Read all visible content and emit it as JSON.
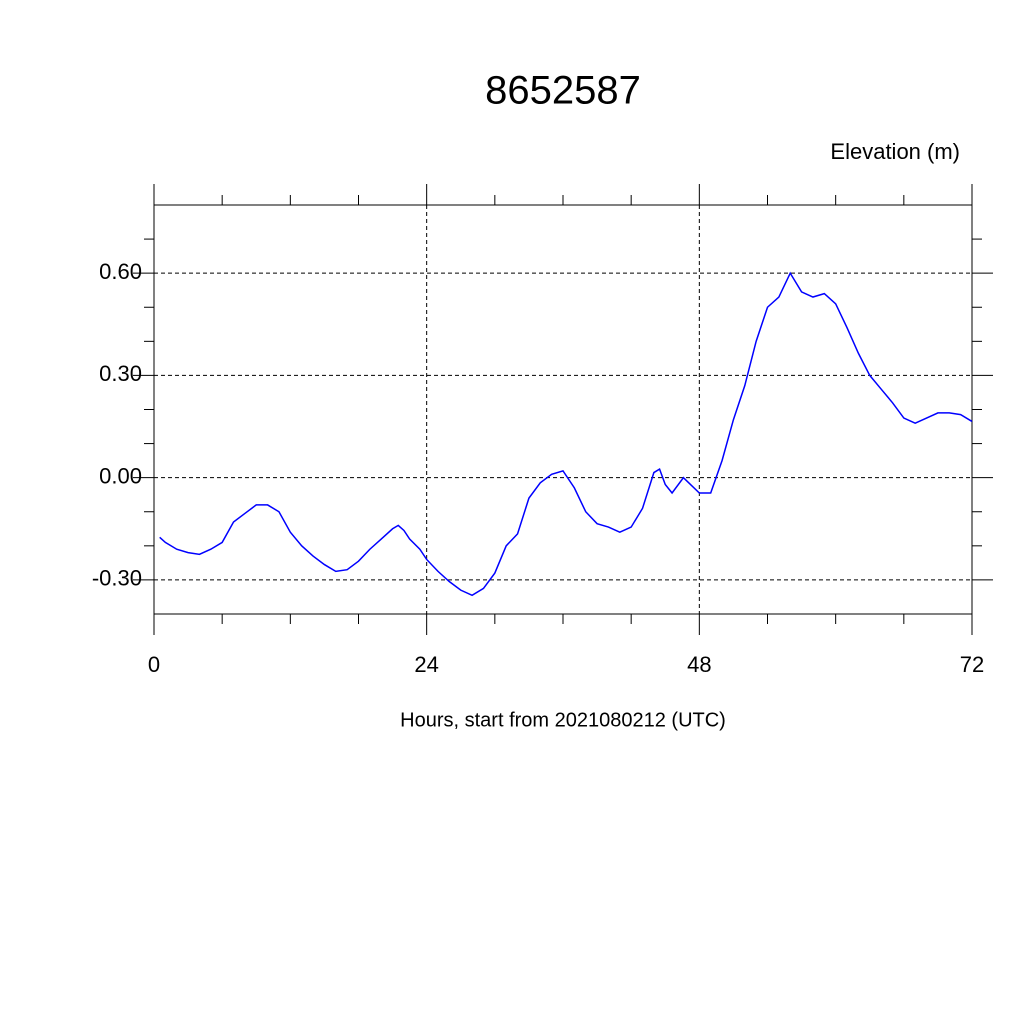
{
  "chart_data": {
    "type": "line",
    "title": "8652587",
    "subtitle": "Elevation (m)",
    "x_label": "Hours, start from 2021080212 (UTC)",
    "x": [
      0.5,
      1,
      2,
      3,
      4,
      5,
      6,
      7,
      8,
      9,
      10,
      11,
      12,
      13,
      14,
      15,
      16,
      17,
      18,
      19,
      20,
      21,
      21.5,
      22,
      22.5,
      23.4,
      24,
      25,
      26,
      27,
      28,
      29,
      30,
      31,
      32,
      33,
      34,
      35,
      36,
      37,
      38,
      39,
      40,
      41,
      42,
      43,
      44,
      44.5,
      45,
      45.6,
      46.6,
      48,
      49,
      50,
      51,
      52,
      53,
      54,
      55,
      56,
      57,
      58,
      59,
      60,
      61,
      62,
      63,
      64,
      65,
      66,
      67,
      68,
      69,
      70,
      71,
      72
    ],
    "series": [
      {
        "name": "Elevation",
        "color": "#0000ff",
        "values": [
          -0.175,
          -0.19,
          -0.21,
          -0.22,
          -0.225,
          -0.21,
          -0.19,
          -0.13,
          -0.105,
          -0.08,
          -0.08,
          -0.1,
          -0.16,
          -0.2,
          -0.23,
          -0.255,
          -0.275,
          -0.27,
          -0.245,
          -0.21,
          -0.18,
          -0.15,
          -0.14,
          -0.155,
          -0.18,
          -0.21,
          -0.24,
          -0.275,
          -0.305,
          -0.33,
          -0.345,
          -0.325,
          -0.28,
          -0.2,
          -0.165,
          -0.06,
          -0.015,
          0.01,
          0.02,
          -0.03,
          -0.1,
          -0.135,
          -0.145,
          -0.16,
          -0.145,
          -0.09,
          0.015,
          0.025,
          -0.02,
          -0.045,
          0.0,
          -0.045,
          -0.045,
          0.05,
          0.17,
          0.27,
          0.4,
          0.5,
          0.53,
          0.6,
          0.545,
          0.53,
          0.54,
          0.51,
          0.44,
          0.365,
          0.3,
          0.26,
          0.22,
          0.175,
          0.16,
          0.175,
          0.19,
          0.19,
          0.185,
          0.165
        ]
      }
    ],
    "xlim": [
      0,
      72
    ],
    "xticks": [
      0,
      24,
      48,
      72
    ],
    "xminorticks": [
      6,
      12,
      18,
      30,
      36,
      42,
      54,
      60,
      66
    ],
    "ylim": [
      -0.4,
      0.8
    ],
    "yticks": [
      {
        "value": -0.3,
        "label": "-0.30"
      },
      {
        "value": 0,
        "label": "0.00"
      },
      {
        "value": 0.3,
        "label": "0.30"
      },
      {
        "value": 0.6,
        "label": "0.60"
      }
    ],
    "yminorticks": [
      -0.2,
      -0.1,
      0.1,
      0.2,
      0.4,
      0.5,
      0.7
    ],
    "grid": true
  }
}
